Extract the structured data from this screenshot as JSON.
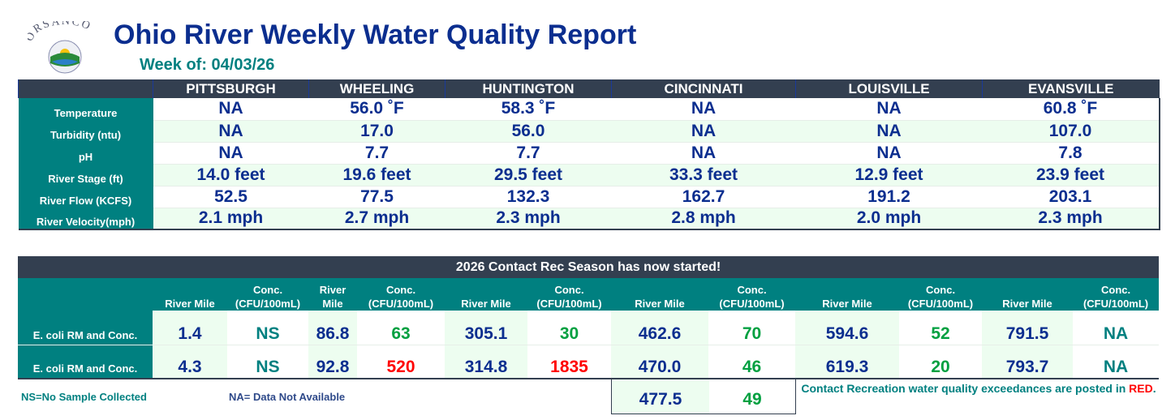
{
  "header": {
    "logo_text": "ORSANCO",
    "title": "Ohio River Weekly Water Quality Report",
    "week": "Week of: 04/03/26"
  },
  "colors": {
    "dark": "#333f50",
    "teal": "#008080",
    "value_blue": "#0b2e8f",
    "green": "#00a040",
    "red": "#ff0000"
  },
  "summary": {
    "cities": [
      "PITTSBURGH",
      "WHEELING",
      "HUNTINGTON",
      "CINCINNATI",
      "LOUISVILLE",
      "EVANSVILLE"
    ],
    "rows": [
      {
        "label": "Temperature",
        "values": [
          "NA",
          "56.0 ˚F",
          "58.3 ˚F",
          "NA",
          "NA",
          "60.8 ˚F"
        ]
      },
      {
        "label": "Turbidity (ntu)",
        "values": [
          "NA",
          "17.0",
          "56.0",
          "NA",
          "NA",
          "107.0"
        ]
      },
      {
        "label": "pH",
        "values": [
          "NA",
          "7.7",
          "7.7",
          "NA",
          "NA",
          "7.8"
        ]
      },
      {
        "label": "River Stage (ft)",
        "values": [
          "14.0 feet",
          "19.6 feet",
          "29.5 feet",
          "33.3 feet",
          "12.9 feet",
          "23.9 feet"
        ]
      },
      {
        "label": "River Flow (KCFS)",
        "values": [
          "52.5",
          "77.5",
          "132.3",
          "162.7",
          "191.2",
          "203.1"
        ]
      },
      {
        "label": "River Velocity(mph)",
        "values": [
          "2.1 mph",
          "2.7 mph",
          "2.3 mph",
          "2.8 mph",
          "2.0 mph",
          "2.3 mph"
        ]
      }
    ]
  },
  "ecoli": {
    "title": "2026 Contact Rec Season has now started!",
    "headers": [
      "River Mile",
      "Conc. (CFU/100mL)",
      "River Mile",
      "Conc. (CFU/100mL)",
      "River Mile",
      "Conc. (CFU/100mL)",
      "River Mile",
      "Conc. (CFU/100mL)",
      "River Mile",
      "Conc. (CFU/100mL)",
      "River Mile",
      "Conc. (CFU/100mL)"
    ],
    "rows": [
      {
        "label": "E. coli RM and Conc.",
        "cells": [
          {
            "v": "1.4"
          },
          {
            "v": "NS",
            "s": "teal"
          },
          {
            "v": "86.8"
          },
          {
            "v": "63",
            "s": "green"
          },
          {
            "v": "305.1"
          },
          {
            "v": "30",
            "s": "green"
          },
          {
            "v": "462.6"
          },
          {
            "v": "70",
            "s": "green"
          },
          {
            "v": "594.6"
          },
          {
            "v": "52",
            "s": "green"
          },
          {
            "v": "791.5"
          },
          {
            "v": "NA",
            "s": "teal"
          }
        ]
      },
      {
        "label": "E. coli RM and Conc.",
        "cells": [
          {
            "v": "4.3"
          },
          {
            "v": "NS",
            "s": "teal"
          },
          {
            "v": "92.8"
          },
          {
            "v": "520",
            "s": "red"
          },
          {
            "v": "314.8"
          },
          {
            "v": "1835",
            "s": "red"
          },
          {
            "v": "470.0"
          },
          {
            "v": "46",
            "s": "green"
          },
          {
            "v": "619.3"
          },
          {
            "v": "20",
            "s": "green"
          },
          {
            "v": "793.7"
          },
          {
            "v": "NA",
            "s": "teal"
          }
        ]
      }
    ],
    "extra_row": {
      "river_mile": "477.5",
      "conc": "49"
    }
  },
  "legend": {
    "ns": "NS=No Sample Collected",
    "na": "NA= Data Not Available",
    "note_prefix": "Contact Recreation water quality exceedances are posted in ",
    "note_red": "RED",
    "note_suffix": "."
  }
}
